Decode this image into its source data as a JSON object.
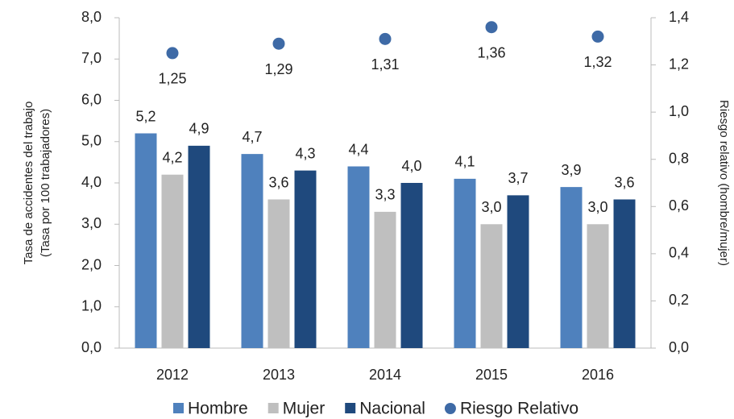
{
  "chart_data": {
    "type": "bar",
    "categories": [
      "2012",
      "2013",
      "2014",
      "2015",
      "2016"
    ],
    "series": [
      {
        "name": "Hombre",
        "color": "#4f81bd",
        "values": [
          5.2,
          4.7,
          4.4,
          4.1,
          3.9
        ],
        "value_labels": [
          "5,2",
          "4,7",
          "4,4",
          "4,1",
          "3,9"
        ]
      },
      {
        "name": "Mujer",
        "color": "#bfbfbf",
        "values": [
          4.2,
          3.6,
          3.3,
          3.0,
          3.0
        ],
        "value_labels": [
          "4,2",
          "3,6",
          "3,3",
          "3,0",
          "3,0"
        ]
      },
      {
        "name": "Nacional",
        "color": "#1f497d",
        "values": [
          4.9,
          4.3,
          4.0,
          3.7,
          3.6
        ],
        "value_labels": [
          "4,9",
          "4,3",
          "4,0",
          "3,7",
          "3,6"
        ]
      },
      {
        "name": "Riesgo Relativo",
        "color": "#3e6aa6",
        "type": "scatter",
        "axis": "y2",
        "values": [
          1.25,
          1.29,
          1.31,
          1.36,
          1.32
        ],
        "value_labels": [
          "1,25",
          "1,29",
          "1,31",
          "1,36",
          "1,32"
        ]
      }
    ],
    "ylabel": [
      "Tasa de accidentes del trabajo",
      "(Tasa por 100 trabajadores)"
    ],
    "y2label": "Riesgo relativo (hombre/mujer)",
    "ylim": [
      0,
      8
    ],
    "yticks": [
      {
        "value": 0,
        "label": "0,0"
      },
      {
        "value": 1,
        "label": "1,0"
      },
      {
        "value": 2,
        "label": "2,0"
      },
      {
        "value": 3,
        "label": "3,0"
      },
      {
        "value": 4,
        "label": "4,0"
      },
      {
        "value": 5,
        "label": "5,0"
      },
      {
        "value": 6,
        "label": "6,0"
      },
      {
        "value": 7,
        "label": "7,0"
      },
      {
        "value": 8,
        "label": "8,0"
      }
    ],
    "y2lim": [
      0,
      1.4
    ],
    "y2ticks": [
      {
        "value": 0,
        "label": "0,0"
      },
      {
        "value": 0.2,
        "label": "0,2"
      },
      {
        "value": 0.4,
        "label": "0,4"
      },
      {
        "value": 0.6,
        "label": "0,6"
      },
      {
        "value": 0.8,
        "label": "0,8"
      },
      {
        "value": 1,
        "label": "1,0"
      },
      {
        "value": 1.2,
        "label": "1,2"
      },
      {
        "value": 1.4,
        "label": "1,4"
      }
    ],
    "legend": "bottom"
  }
}
